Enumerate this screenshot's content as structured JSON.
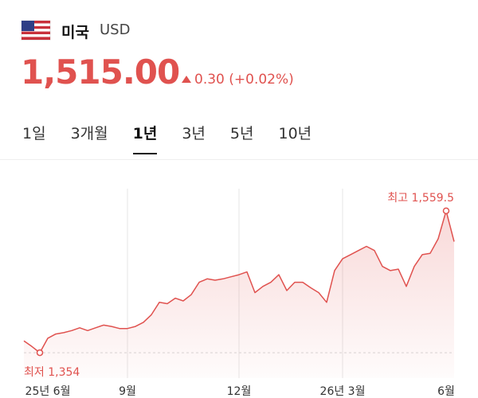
{
  "header": {
    "country": "미국",
    "currency": "USD"
  },
  "price": {
    "value": "1,515.00",
    "change": "0.30 (+0.02%)"
  },
  "tabs": [
    "1일",
    "3개월",
    "1년",
    "3년",
    "5년",
    "10년"
  ],
  "selected_tab": "1년",
  "chart_data": {
    "type": "line",
    "color": "#e0524f",
    "categories": [
      null,
      null,
      null,
      "25년 6월",
      null,
      null,
      null,
      null,
      null,
      null,
      null,
      null,
      null,
      "9월",
      null,
      null,
      null,
      null,
      null,
      null,
      null,
      null,
      null,
      null,
      null,
      null,
      null,
      "12월",
      null,
      null,
      null,
      null,
      null,
      null,
      null,
      null,
      null,
      null,
      null,
      null,
      "26년 3월",
      null,
      null,
      null,
      null,
      null,
      null,
      null,
      null,
      null,
      null,
      null,
      null,
      "6월",
      null
    ],
    "values": [
      1371,
      1363,
      1354,
      1375,
      1381,
      1383,
      1386,
      1390,
      1386,
      1390,
      1394,
      1392,
      1389,
      1389,
      1392,
      1398,
      1409,
      1427,
      1425,
      1433,
      1429,
      1438,
      1456,
      1461,
      1459,
      1461,
      1464,
      1467,
      1471,
      1441,
      1450,
      1456,
      1467,
      1444,
      1456,
      1456,
      1448,
      1441,
      1427,
      1473,
      1490,
      1496,
      1502,
      1508,
      1502,
      1479,
      1473,
      1475,
      1450,
      1479,
      1496,
      1498,
      1519,
      1559.5,
      1515
    ],
    "ylim": [
      1346,
      1617
    ],
    "high_label": "최고 1,559.5",
    "low_label": "최저 1,354"
  }
}
